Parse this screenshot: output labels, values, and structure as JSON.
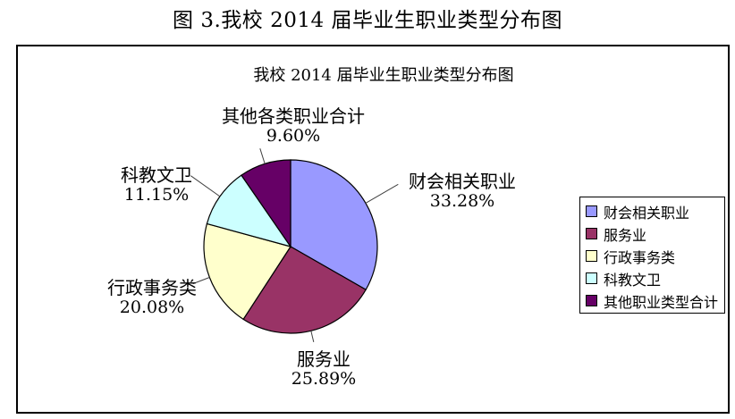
{
  "figure_title": "图 3.我校 2014 届毕业生职业类型分布图",
  "chart_data": {
    "type": "pie",
    "title": "我校 2014 届毕业生职业类型分布图",
    "start_angle": "12 o'clock",
    "direction": "clockwise",
    "legend_position": "right",
    "slices": [
      {
        "label": "财会相关职业",
        "legend_label": "财会相关职业",
        "value": 33.28,
        "percent_label": "33.28%",
        "color": "#9999FF"
      },
      {
        "label": "服务业",
        "legend_label": "服务业",
        "value": 25.89,
        "percent_label": "25.89%",
        "color": "#993366"
      },
      {
        "label": "行政事务类",
        "legend_label": "行政事务类",
        "value": 20.08,
        "percent_label": "20.08%",
        "color": "#FFFFCC"
      },
      {
        "label": "科教文卫",
        "legend_label": "科教文卫",
        "value": 11.15,
        "percent_label": "11.15%",
        "color": "#CCFFFF"
      },
      {
        "label": "其他各类职业合计",
        "legend_label": "其他职业类型合计",
        "value": 9.6,
        "percent_label": "9.60%",
        "color": "#660066"
      }
    ]
  }
}
